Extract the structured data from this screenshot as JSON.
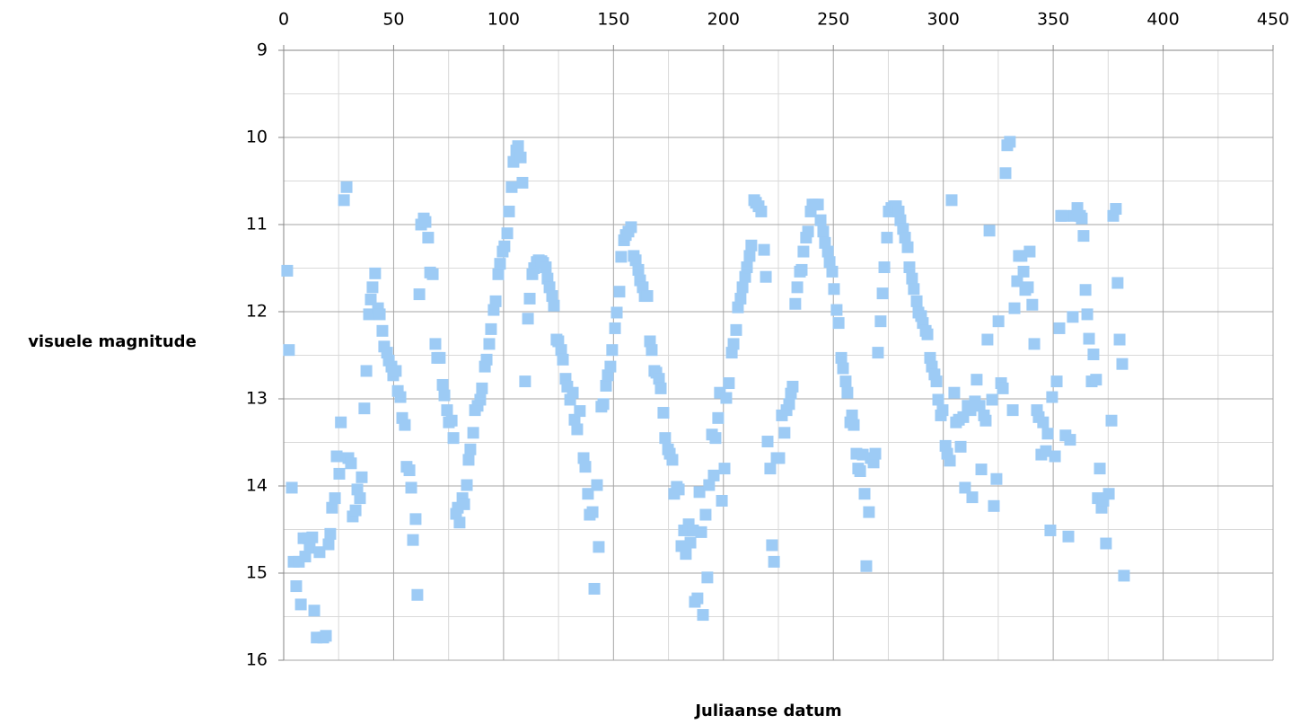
{
  "chart_data": {
    "type": "scatter",
    "xlabel": "Juliaanse datum",
    "ylabel": "visuele magnitude",
    "xlim": [
      0,
      450
    ],
    "xticks": [
      0,
      50,
      100,
      150,
      200,
      250,
      300,
      350,
      400,
      450
    ],
    "ylim": [
      9,
      16
    ],
    "yticks": [
      9,
      10,
      11,
      12,
      13,
      14,
      15,
      16
    ],
    "y_inverted": true,
    "x_axis_position": "top",
    "grid": true,
    "color": "#9dcbf5",
    "x": [
      1.6,
      2.4,
      3.7,
      4.5,
      5.7,
      6.9,
      7.8,
      9,
      9.8,
      11,
      11.8,
      13,
      13.9,
      15,
      16.3,
      18,
      19.2,
      20.4,
      21.2,
      22,
      23.3,
      24.1,
      25.3,
      26,
      27.4,
      28.6,
      29.4,
      30.6,
      31.4,
      32.7,
      33.5,
      34.7,
      35.5,
      36.7,
      37.6,
      38.8,
      39.6,
      40.4,
      41.6,
      42.9,
      43.7,
      44.9,
      45.7,
      47,
      47.8,
      49,
      49.8,
      51,
      51.9,
      53.1,
      53.9,
      55.1,
      55.9,
      57.2,
      58,
      58.8,
      60,
      60.8,
      61.7,
      62.5,
      63.7,
      64.5,
      65.7,
      66.6,
      67.8,
      69,
      69.8,
      71,
      72.3,
      73.1,
      74.3,
      75.1,
      76.4,
      77.2,
      78.4,
      79.2,
      80,
      81.3,
      82.1,
      83.3,
      84.1,
      84.9,
      86.2,
      87,
      88.2,
      89.4,
      90.2,
      91.5,
      92.3,
      93.5,
      94.3,
      95.5,
      96.4,
      97.6,
      98.4,
      99.6,
      100.4,
      101.7,
      102.5,
      103.7,
      104.5,
      105.8,
      106.6,
      107.8,
      108.6,
      109.8,
      111.1,
      111.9,
      113.1,
      113.9,
      115.1,
      116,
      117.2,
      118,
      119.2,
      120,
      120.9,
      122.1,
      122.9,
      124.1,
      124.9,
      126.2,
      127,
      128.2,
      129,
      130.3,
      131.5,
      132.3,
      133.5,
      134.7,
      136.4,
      137.2,
      138.4,
      139.2,
      140.5,
      141.3,
      142.5,
      143.3,
      144.5,
      145.4,
      146.6,
      147.4,
      148.6,
      149.4,
      150.7,
      151.5,
      152.7,
      153.5,
      154.8,
      155.6,
      156.8,
      158,
      159.2,
      160.1,
      161.3,
      162.1,
      163.3,
      164.2,
      165.4,
      166.6,
      167.4,
      168.6,
      169.5,
      170.7,
      171.5,
      172.7,
      173.5,
      174.8,
      175.6,
      176.8,
      177.6,
      178.8,
      179.7,
      180.9,
      182.1,
      182.9,
      184.2,
      185,
      186.2,
      187,
      188.2,
      189.1,
      189.9,
      190.7,
      191.9,
      192.7,
      193.5,
      194.8,
      195.6,
      196.4,
      197.6,
      198.4,
      199.3,
      200.5,
      201.3,
      202.5,
      203.8,
      204.6,
      205.8,
      206.6,
      207.8,
      208.7,
      209.9,
      210.7,
      211.9,
      212.7,
      214,
      214.8,
      216,
      217.2,
      218.5,
      219.3,
      220.1,
      221.3,
      222.1,
      223,
      224.2,
      225.4,
      226.6,
      227.8,
      228.7,
      229.9,
      230.7,
      231.5,
      232.7,
      233.6,
      234.8,
      235.6,
      236.4,
      237.6,
      238.5,
      239.7,
      240.5,
      241.7,
      243,
      244.2,
      245.4,
      246.2,
      247.5,
      248.3,
      249.5,
      250.3,
      251.5,
      252.4,
      253.6,
      254.4,
      255.6,
      256.4,
      257.7,
      258.5,
      259.3,
      260.5,
      261.3,
      262.2,
      263.4,
      264.2,
      265,
      266.2,
      267,
      268.3,
      269.1,
      270.3,
      271.5,
      272.4,
      273.2,
      274.4,
      275.2,
      276.4,
      277.7,
      278.5,
      279.7,
      280.5,
      281.7,
      282.6,
      283.8,
      284.6,
      285.8,
      286.6,
      287.9,
      288.7,
      289.9,
      290.7,
      292,
      292.8,
      294,
      294.8,
      296,
      296.9,
      297.7,
      298.9,
      299.7,
      301,
      301.8,
      303,
      303.8,
      305,
      305.8,
      307.1,
      307.9,
      309.1,
      309.9,
      311.1,
      312.4,
      313.2,
      314.4,
      315.2,
      316.5,
      317.3,
      318.5,
      319.3,
      320.1,
      321,
      322.2,
      323,
      324.2,
      325.1,
      326.3,
      327.1,
      328.3,
      329.1,
      330.3,
      331.6,
      332.4,
      333.6,
      334.4,
      335.6,
      336.5,
      337.3,
      338.5,
      339.3,
      340.5,
      341.4,
      342.6,
      343.4,
      344.6,
      345.4,
      346.7,
      347.5,
      348.7,
      349.5,
      350.8,
      351.6,
      352.8,
      353.6,
      354.8,
      355.6,
      356.9,
      357.7,
      358.9,
      359.7,
      361,
      362.2,
      363,
      363.8,
      364.7,
      365.5,
      366.3,
      367.5,
      368.3,
      369.5,
      370.3,
      371.2,
      372,
      372.8,
      374,
      375.3,
      376.5,
      377.3,
      378.5,
      379.3,
      380.2,
      381.4,
      382.2
    ],
    "values": [
      11.53,
      12.44,
      14.02,
      14.87,
      15.15,
      14.87,
      15.36,
      14.6,
      14.81,
      14.6,
      14.71,
      14.59,
      15.43,
      15.74,
      14.76,
      15.74,
      15.72,
      14.67,
      14.55,
      14.25,
      14.14,
      13.66,
      13.86,
      13.27,
      10.72,
      10.57,
      13.68,
      13.74,
      14.35,
      14.28,
      14.04,
      14.14,
      13.9,
      13.11,
      12.68,
      12.03,
      11.86,
      11.72,
      11.56,
      11.96,
      12.03,
      12.22,
      12.4,
      12.47,
      12.56,
      12.63,
      12.73,
      12.68,
      12.91,
      12.98,
      13.22,
      13.3,
      13.78,
      13.82,
      14.02,
      14.62,
      14.38,
      15.25,
      11.8,
      11.0,
      10.93,
      10.97,
      11.15,
      11.55,
      11.57,
      12.37,
      12.53,
      12.53,
      12.84,
      12.96,
      13.13,
      13.27,
      13.25,
      13.45,
      14.32,
      14.25,
      14.42,
      14.14,
      14.21,
      13.99,
      13.7,
      13.58,
      13.39,
      13.13,
      13.08,
      13.01,
      12.88,
      12.63,
      12.55,
      12.37,
      12.2,
      11.98,
      11.88,
      11.57,
      11.45,
      11.31,
      11.25,
      11.1,
      10.85,
      10.57,
      10.28,
      10.15,
      10.1,
      10.23,
      10.52,
      12.8,
      12.08,
      11.85,
      11.57,
      11.5,
      11.43,
      11.41,
      11.42,
      11.44,
      11.49,
      11.62,
      11.72,
      11.82,
      11.93,
      12.32,
      12.34,
      12.44,
      12.55,
      12.77,
      12.86,
      13.01,
      12.93,
      13.24,
      13.35,
      13.14,
      13.68,
      13.78,
      14.09,
      14.33,
      14.3,
      15.18,
      13.99,
      14.7,
      13.09,
      13.06,
      12.85,
      12.73,
      12.63,
      12.44,
      12.19,
      12.01,
      11.77,
      11.37,
      11.18,
      11.12,
      11.08,
      11.03,
      11.36,
      11.41,
      11.52,
      11.64,
      11.72,
      11.82,
      11.82,
      12.34,
      12.44,
      12.68,
      12.7,
      12.77,
      12.88,
      13.16,
      13.45,
      13.58,
      13.63,
      13.7,
      14.09,
      14.01,
      14.04,
      14.69,
      14.51,
      14.78,
      14.44,
      14.65,
      14.51,
      15.33,
      15.29,
      14.07,
      14.53,
      15.48,
      14.33,
      15.05,
      13.99,
      13.41,
      13.88,
      13.45,
      13.22,
      12.93,
      14.17,
      13.8,
      12.99,
      12.82,
      12.47,
      12.37,
      12.21,
      11.95,
      11.85,
      11.72,
      11.6,
      11.49,
      11.36,
      11.24,
      10.72,
      10.75,
      10.79,
      10.85,
      11.29,
      11.6,
      13.49,
      13.8,
      14.68,
      14.87,
      13.68,
      13.68,
      13.19,
      13.39,
      13.13,
      13.06,
      12.94,
      12.86,
      11.91,
      11.72,
      11.54,
      11.52,
      11.31,
      11.15,
      11.08,
      10.85,
      10.77,
      10.77,
      10.77,
      10.95,
      11.08,
      11.21,
      11.31,
      11.43,
      11.54,
      11.74,
      11.98,
      12.13,
      12.53,
      12.65,
      12.8,
      12.93,
      13.27,
      13.19,
      13.3,
      13.63,
      13.8,
      13.83,
      13.64,
      14.09,
      14.92,
      14.3,
      13.68,
      13.73,
      13.63,
      12.47,
      12.11,
      11.79,
      11.49,
      11.15,
      10.85,
      10.81,
      10.79,
      10.79,
      10.85,
      10.95,
      11.05,
      11.15,
      11.26,
      11.49,
      11.62,
      11.74,
      11.88,
      12.01,
      12.05,
      12.13,
      12.22,
      12.26,
      12.53,
      12.63,
      12.72,
      12.8,
      13.01,
      13.19,
      13.13,
      13.54,
      13.63,
      13.71,
      10.72,
      12.93,
      13.27,
      13.24,
      13.55,
      13.21,
      14.02,
      13.08,
      13.13,
      14.13,
      13.03,
      12.78,
      13.08,
      13.81,
      13.19,
      13.25,
      12.32,
      11.07,
      13.01,
      14.23,
      13.92,
      12.11,
      12.82,
      12.88,
      10.41,
      10.09,
      10.05,
      13.13,
      11.96,
      11.65,
      11.36,
      11.36,
      11.54,
      11.75,
      11.72,
      11.31,
      11.92,
      12.37,
      13.13,
      13.21,
      13.64,
      13.27,
      13.6,
      13.4,
      14.51,
      12.98,
      13.66,
      12.8,
      12.19,
      10.9,
      10.9,
      13.42,
      14.58,
      13.47,
      12.06,
      10.9,
      10.81,
      10.9,
      10.93,
      11.13,
      11.75,
      12.03,
      12.31,
      12.8,
      12.49,
      12.78,
      14.14,
      13.8,
      14.25,
      14.17,
      14.66,
      14.09,
      13.25,
      10.9,
      10.82,
      11.67,
      12.32,
      12.6,
      15.03
    ]
  }
}
